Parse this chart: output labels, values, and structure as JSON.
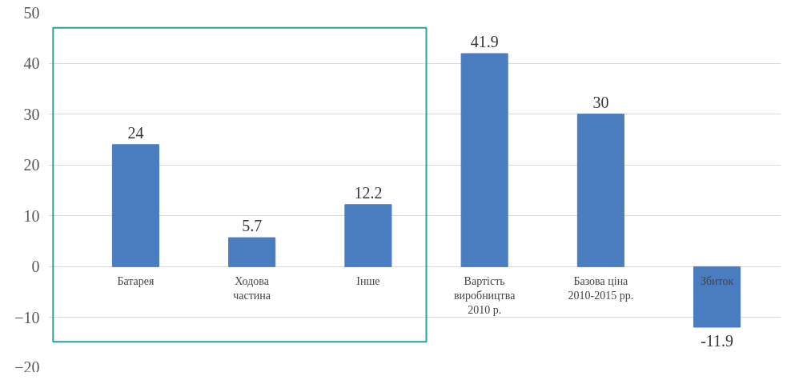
{
  "chart_data": {
    "type": "bar",
    "categories": [
      "Батарея",
      "Ходова\nчастина",
      "Інше",
      "Вартість\nвиробництва\n2010 р.",
      "Базова ціна\n2010-2015 рр.",
      "Збиток"
    ],
    "values": [
      24,
      5.7,
      12.2,
      41.9,
      30,
      -11.9
    ],
    "color": "#4a7dc0",
    "ylim": [
      -20,
      50
    ],
    "yticks": [
      -20,
      -10,
      0,
      10,
      20,
      30,
      40,
      50
    ],
    "grid": "y",
    "data_labels": true
  }
}
